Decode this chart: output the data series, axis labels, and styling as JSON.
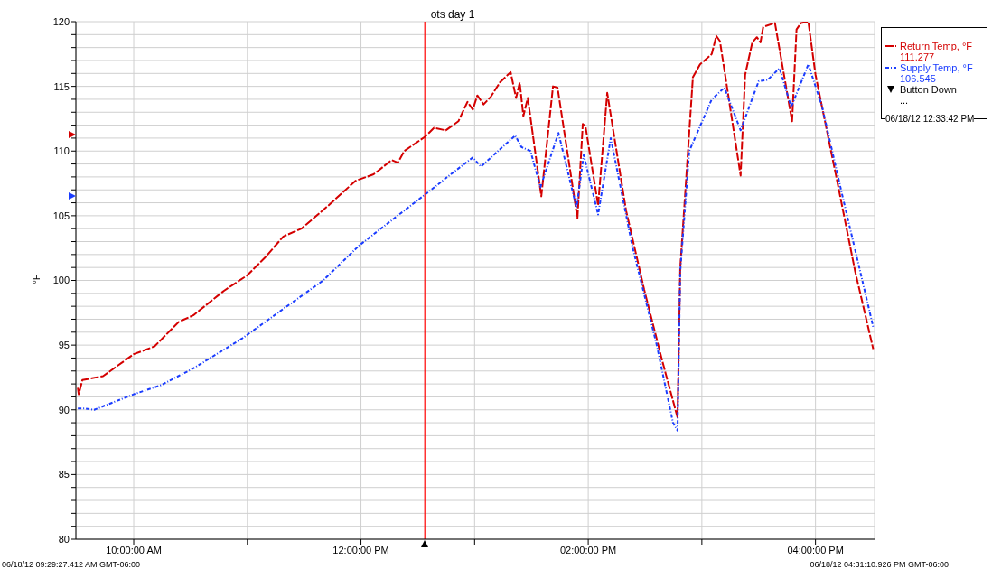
{
  "chart_data": {
    "type": "line",
    "title": "ots day 1",
    "ylabel": "°F",
    "xlim": [
      9.491,
      16.5197
    ],
    "xticks": [
      {
        "value": 10,
        "label": "10:00:00 AM"
      },
      {
        "value": 11,
        "label": null
      },
      {
        "value": 12,
        "label": "12:00:00 PM"
      },
      {
        "value": 13,
        "label": null
      },
      {
        "value": 14,
        "label": "02:00:00 PM"
      },
      {
        "value": 15,
        "label": null
      },
      {
        "value": 16,
        "label": "04:00:00 PM"
      }
    ],
    "ylim": [
      80,
      120
    ],
    "yticks": [
      80,
      {
        "value": 81,
        "label": null
      },
      {
        "value": 82,
        "label": null
      },
      {
        "value": 83,
        "label": null
      },
      {
        "value": 84,
        "label": null
      },
      85,
      {
        "value": 86,
        "label": null
      },
      {
        "value": 87,
        "label": null
      },
      {
        "value": 88,
        "label": null
      },
      {
        "value": 89,
        "label": null
      },
      90,
      {
        "value": 91,
        "label": null
      },
      {
        "value": 92,
        "label": null
      },
      {
        "value": 93,
        "label": null
      },
      {
        "value": 94,
        "label": null
      },
      95,
      {
        "value": 96,
        "label": null
      },
      {
        "value": 97,
        "label": null
      },
      {
        "value": 98,
        "label": null
      },
      {
        "value": 99,
        "label": null
      },
      100,
      {
        "value": 101,
        "label": null
      },
      {
        "value": 102,
        "label": null
      },
      {
        "value": 103,
        "label": null
      },
      {
        "value": 104,
        "label": null
      },
      105,
      {
        "value": 106,
        "label": null
      },
      {
        "value": 107,
        "label": null
      },
      {
        "value": 108,
        "label": null
      },
      {
        "value": 109,
        "label": null
      },
      110,
      {
        "value": 111,
        "label": null
      },
      {
        "value": 112,
        "label": null
      },
      {
        "value": 113,
        "label": null
      },
      {
        "value": 114,
        "label": null
      },
      115,
      {
        "value": 116,
        "label": null
      },
      {
        "value": 117,
        "label": null
      },
      {
        "value": 118,
        "label": null
      },
      {
        "value": 119,
        "label": null
      },
      120
    ],
    "grid": true,
    "legend": "right",
    "marker": "none",
    "series": [
      {
        "name": "Return Temp, °F",
        "color": "#d40000",
        "line_style": "dashed",
        "x": [
          9.508,
          9.516,
          9.548,
          9.73,
          10,
          10.183,
          10.397,
          10.524,
          10.794,
          11,
          11.159,
          11.317,
          11.476,
          11.714,
          11.952,
          12.111,
          12.27,
          12.325,
          12.381,
          12.563,
          12.643,
          12.746,
          12.857,
          12.937,
          12.984,
          13.024,
          13.079,
          13.143,
          13.222,
          13.317,
          13.365,
          13.397,
          13.429,
          13.468,
          13.587,
          13.69,
          13.73,
          13.905,
          13.952,
          13.976,
          14.087,
          14.167,
          14.333,
          14.492,
          14.651,
          14.786,
          14.81,
          14.921,
          14.984,
          15.087,
          15.127,
          15.159,
          15.341,
          15.381,
          15.444,
          15.484,
          15.516,
          15.54,
          15.643,
          15.794,
          15.833,
          15.873,
          15.937,
          16,
          16.19,
          16.349,
          16.508
        ],
        "values": [
          91.7,
          91.2,
          92.3,
          92.6,
          94.3,
          94.9,
          96.8,
          97.3,
          99.2,
          100.4,
          101.8,
          103.4,
          104,
          105.8,
          107.7,
          108.2,
          109.3,
          109.1,
          110,
          111.1,
          111.8,
          111.6,
          112.3,
          113.8,
          113.2,
          114.3,
          113.6,
          114.2,
          115.3,
          116.1,
          114.1,
          115.3,
          112.7,
          114.1,
          106.5,
          115,
          114.9,
          104.8,
          112.1,
          111.9,
          105.8,
          114.5,
          105.4,
          99.3,
          93.8,
          89.4,
          101,
          115.7,
          116.7,
          117.5,
          118.9,
          118.5,
          108.1,
          115.9,
          118.4,
          118.8,
          118.4,
          119.6,
          119.9,
          112.3,
          119.4,
          119.9,
          120,
          115.9,
          107.7,
          100.7,
          94.7
        ]
      },
      {
        "name": "Supply Temp, °F",
        "color": "#1a3cff",
        "line_style": "dotted",
        "x": [
          9.508,
          9.571,
          9.651,
          10,
          10.238,
          10.524,
          10.952,
          11.317,
          11.667,
          11.984,
          12.381,
          12.603,
          12.746,
          12.984,
          13.056,
          13.357,
          13.413,
          13.492,
          13.579,
          13.738,
          13.897,
          13.96,
          14.087,
          14.198,
          14.389,
          14.603,
          14.746,
          14.786,
          14.81,
          14.889,
          15.087,
          15.198,
          15.341,
          15.5,
          15.579,
          15.683,
          15.786,
          15.937,
          16.056,
          16.238,
          16.508
        ],
        "values": [
          90.1,
          90.1,
          90,
          91.2,
          91.9,
          93.2,
          95.5,
          97.8,
          100,
          102.7,
          105.4,
          106.9,
          107.9,
          109.5,
          108.8,
          111.2,
          110.3,
          110,
          107.2,
          111.4,
          105.6,
          109.7,
          105.1,
          111,
          102.6,
          95,
          89,
          88.4,
          100.7,
          110,
          114,
          114.9,
          111.6,
          115.4,
          115.5,
          116.4,
          113.4,
          116.7,
          113.5,
          106.5,
          96.4
        ]
      }
    ],
    "ref_lines": [
      {
        "axis": "x",
        "value": 12.5617,
        "color": "#ff0000"
      }
    ],
    "annotations": [
      "111.277",
      "106.545",
      "Button Down",
      "...",
      "06/18/12 12:33:42 PM",
      "06/18/12 09:29:27.412 AM GMT-06:00",
      "06/18/12 04:31:10.926 PM GMT-06:00"
    ]
  }
}
